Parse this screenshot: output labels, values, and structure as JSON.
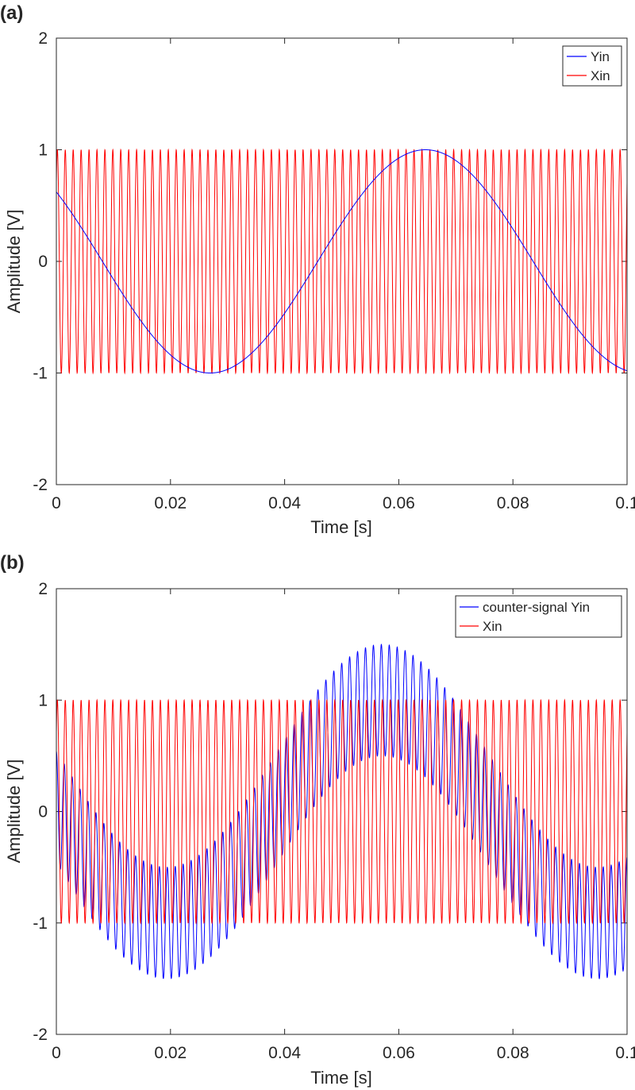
{
  "chart_data": [
    {
      "panel_label": "(a)",
      "type": "line",
      "xlabel": "Time [s]",
      "ylabel": "Amplitude [V]",
      "xlim": [
        0,
        0.1
      ],
      "ylim": [
        -2,
        2
      ],
      "xticks": [
        0,
        0.02,
        0.04,
        0.06,
        0.08,
        0.1
      ],
      "xtick_labels": [
        "0",
        "0.02",
        "0.04",
        "0.06",
        "0.08",
        "0.1"
      ],
      "yticks": [
        -2,
        -1,
        0,
        1,
        2
      ],
      "ytick_labels": [
        "-2",
        "-1",
        "0",
        "1",
        "2"
      ],
      "grid": false,
      "legend": "top-right",
      "series": [
        {
          "name": "Yin",
          "color": "#0000ff",
          "form": "sine",
          "amplitude": 1,
          "frequency_hz": 13.25,
          "phase_rad": 2.47,
          "offset": 0
        },
        {
          "name": "Xin",
          "color": "#ff0000",
          "form": "sine",
          "amplitude": 1,
          "frequency_hz": 720,
          "phase_rad": 0.79,
          "offset": 0
        }
      ]
    },
    {
      "panel_label": "(b)",
      "type": "line",
      "xlabel": "Time [s]",
      "ylabel": "Amplitude [V]",
      "xlim": [
        0,
        0.1
      ],
      "ylim": [
        -2,
        2
      ],
      "xticks": [
        0,
        0.02,
        0.04,
        0.06,
        0.08,
        0.1
      ],
      "xtick_labels": [
        "0",
        "0.02",
        "0.04",
        "0.06",
        "0.08",
        "0.1"
      ],
      "yticks": [
        -2,
        -1,
        0,
        1,
        2
      ],
      "ytick_labels": [
        "-2",
        "-1",
        "0",
        "1",
        "2"
      ],
      "grid": false,
      "legend": "top-right",
      "series": [
        {
          "name": "counter-signal Yin",
          "color": "#0000ff",
          "form": "sine plus sine",
          "amplitude": 1,
          "frequency_hz": 13.25,
          "phase_rad": 3.1,
          "carrier_amplitude": 0.5,
          "carrier_frequency_hz": 720,
          "carrier_phase_rad": 1.57,
          "offset": 0
        },
        {
          "name": "Xin",
          "color": "#ff0000",
          "form": "sine",
          "amplitude": 1,
          "frequency_hz": 720,
          "phase_rad": 0.79,
          "offset": 0
        }
      ]
    }
  ]
}
